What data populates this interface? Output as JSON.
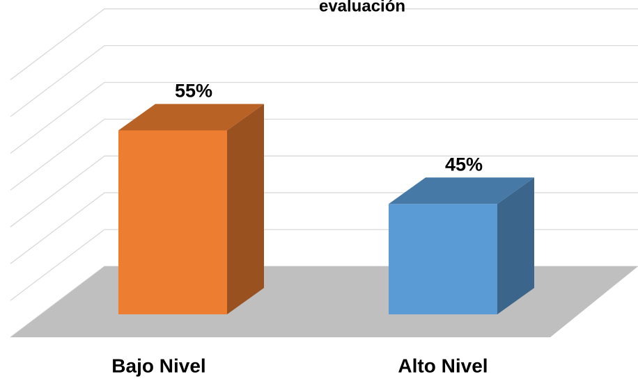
{
  "chart_data": {
    "type": "bar3d",
    "title": "evaluación",
    "categories": [
      "Bajo Nivel",
      "Alto Nivel"
    ],
    "values": [
      55,
      45
    ],
    "value_labels": [
      "55%",
      "45%"
    ],
    "colors": [
      "#ed7d31",
      "#5b9bd5"
    ],
    "ylim": [
      30,
      65
    ],
    "yticks": [
      30,
      35,
      40,
      45,
      50,
      55,
      60,
      65
    ],
    "grid": true
  }
}
